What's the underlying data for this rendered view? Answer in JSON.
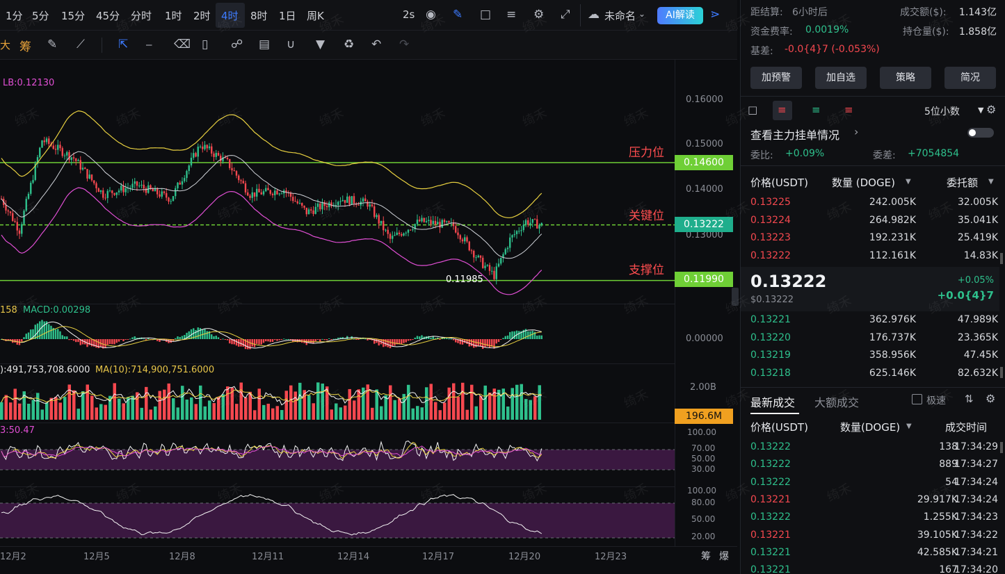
{
  "timeframes": [
    "1分",
    "5分",
    "15分",
    "45分",
    "分时",
    "1时",
    "2时",
    "4时",
    "8时",
    "1日",
    "周K"
  ],
  "active_timeframe": "4时",
  "refresh": "2s",
  "workspace_name": "未命名",
  "ai_button": "AI解读",
  "toolbar_left": [
    "大",
    "筹"
  ],
  "chart": {
    "lb_label": "LB:0.12130",
    "macd_label_prefix": "158",
    "macd_label": "MACD:0.00298",
    "vol_label": "):491,753,708.6000",
    "vol_ma10": "MA(10):714,900,751.6000",
    "rsi_label": "3:50.47",
    "low_marker": "0.11985",
    "levels": {
      "resistance": "压力位",
      "key": "关键位",
      "support": "支撑位"
    },
    "price_axis": [
      "0.16000",
      "0.15000",
      "0.14000",
      "0.13000"
    ],
    "tags": {
      "resistance": "0.14600",
      "current": "0.13222",
      "support": "0.11990",
      "volume": "196.6M"
    },
    "macd_axis": "0.00000",
    "vol_axis": "2.00B",
    "rsi_axis": [
      "100.00",
      "70.00",
      "50.00",
      "30.00"
    ],
    "kdj_axis": [
      "100.00",
      "80.00",
      "50.00",
      "20.00"
    ],
    "dates": [
      "12月2",
      "12月5",
      "12月8",
      "12月11",
      "12月14",
      "12月17",
      "12月20",
      "12月23"
    ],
    "bottom_icons": [
      "筹",
      "爆"
    ],
    "watermark": "绮禾"
  },
  "chart_data": {
    "type": "candlestick",
    "x": [
      "12月2",
      "12月5",
      "12月8",
      "12月11",
      "12月14",
      "12月17",
      "12月20",
      "12月23"
    ],
    "horizontal_lines": [
      0.146,
      0.13222,
      0.1199
    ],
    "annotations": [
      "压力位",
      "关键位",
      "支撑位",
      "0.11985"
    ]
  },
  "info": {
    "settle_label": "距结算:",
    "settle_value": "6小时后",
    "turnover_label": "成交额($):",
    "turnover_value": "1.143亿",
    "funding_label": "资金费率:",
    "funding_value": "0.0019%",
    "oi_label": "持仓量($):",
    "oi_value": "1.858亿",
    "basis_label": "基差:",
    "basis_value": "-0.0{4}7 (-0.053%)"
  },
  "buttons": [
    "加预警",
    "加自选",
    "策略",
    "简况"
  ],
  "orderbook": {
    "decimals": "5位小数",
    "main_orders": "查看主力挂单情况",
    "ratio_label": "委比:",
    "ratio_value": "+0.09%",
    "diff_label": "委差:",
    "diff_value": "+7054854",
    "headers": [
      "价格(USDT)",
      "数量 (DOGE)",
      "委托额"
    ],
    "asks": [
      [
        "0.13225",
        "242.005K",
        "32.005K"
      ],
      [
        "0.13224",
        "264.982K",
        "35.041K"
      ],
      [
        "0.13223",
        "192.231K",
        "25.419K"
      ],
      [
        "0.13222",
        "112.161K",
        "14.83K"
      ]
    ],
    "last_price": "0.13222",
    "last_usd": "$0.13222",
    "change_pct": "+0.05%",
    "change_abs": "+0.0{4}7",
    "bids": [
      [
        "0.13221",
        "362.976K",
        "47.989K"
      ],
      [
        "0.13220",
        "176.737K",
        "23.365K"
      ],
      [
        "0.13219",
        "358.956K",
        "47.45K"
      ],
      [
        "0.13218",
        "625.146K",
        "82.632K"
      ]
    ]
  },
  "trades": {
    "tab_latest": "最新成交",
    "tab_large": "大额成交",
    "fast_label": "极速",
    "headers": [
      "价格(USDT)",
      "数量(DOGE)",
      "成交时间"
    ],
    "rows": [
      [
        "0.13222",
        "138",
        "17:34:29",
        "green"
      ],
      [
        "0.13222",
        "889",
        "17:34:27",
        "green"
      ],
      [
        "0.13222",
        "54",
        "17:34:24",
        "green"
      ],
      [
        "0.13221",
        "29.917K",
        "17:34:24",
        "red"
      ],
      [
        "0.13222",
        "1.255K",
        "17:34:23",
        "green"
      ],
      [
        "0.13221",
        "39.105K",
        "17:34:22",
        "red"
      ],
      [
        "0.13221",
        "42.585K",
        "17:34:21",
        "green"
      ],
      [
        "0.13221",
        "167",
        "17:34:20",
        "green"
      ]
    ]
  }
}
